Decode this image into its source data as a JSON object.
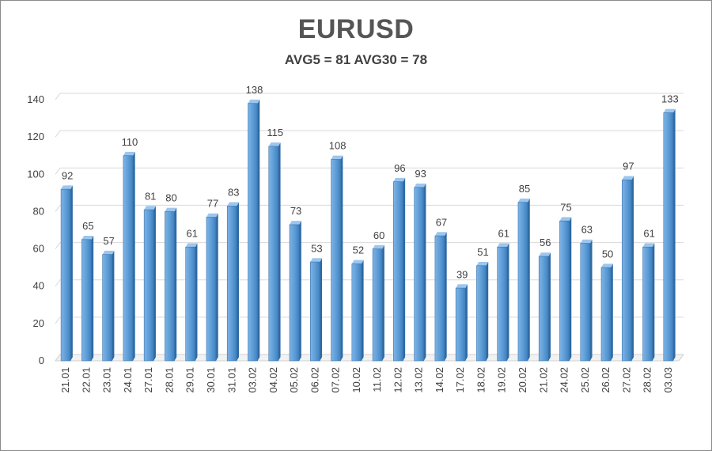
{
  "chart_data": {
    "type": "bar",
    "title": "EURUSD",
    "subtitle": "AVG5 = 81 AVG30 = 78",
    "xlabel": "",
    "ylabel": "",
    "ylim": [
      0,
      140
    ],
    "yticks": [
      0,
      20,
      40,
      60,
      80,
      100,
      120,
      140
    ],
    "grid": true,
    "legend": "none",
    "bar_color": "#5b9bd5",
    "categories": [
      "21.01",
      "22.01",
      "23.01",
      "24.01",
      "27.01",
      "28.01",
      "29.01",
      "30.01",
      "31.01",
      "03.02",
      "04.02",
      "05.02",
      "06.02",
      "07.02",
      "10.02",
      "11.02",
      "12.02",
      "13.02",
      "14.02",
      "17.02",
      "18.02",
      "19.02",
      "20.02",
      "21.02",
      "24.02",
      "25.02",
      "26.02",
      "27.02",
      "28.02",
      "03.03"
    ],
    "values": [
      92,
      65,
      57,
      110,
      81,
      80,
      61,
      77,
      83,
      138,
      115,
      73,
      53,
      108,
      52,
      60,
      96,
      93,
      67,
      39,
      51,
      61,
      85,
      56,
      75,
      63,
      50,
      97,
      61,
      133
    ]
  }
}
